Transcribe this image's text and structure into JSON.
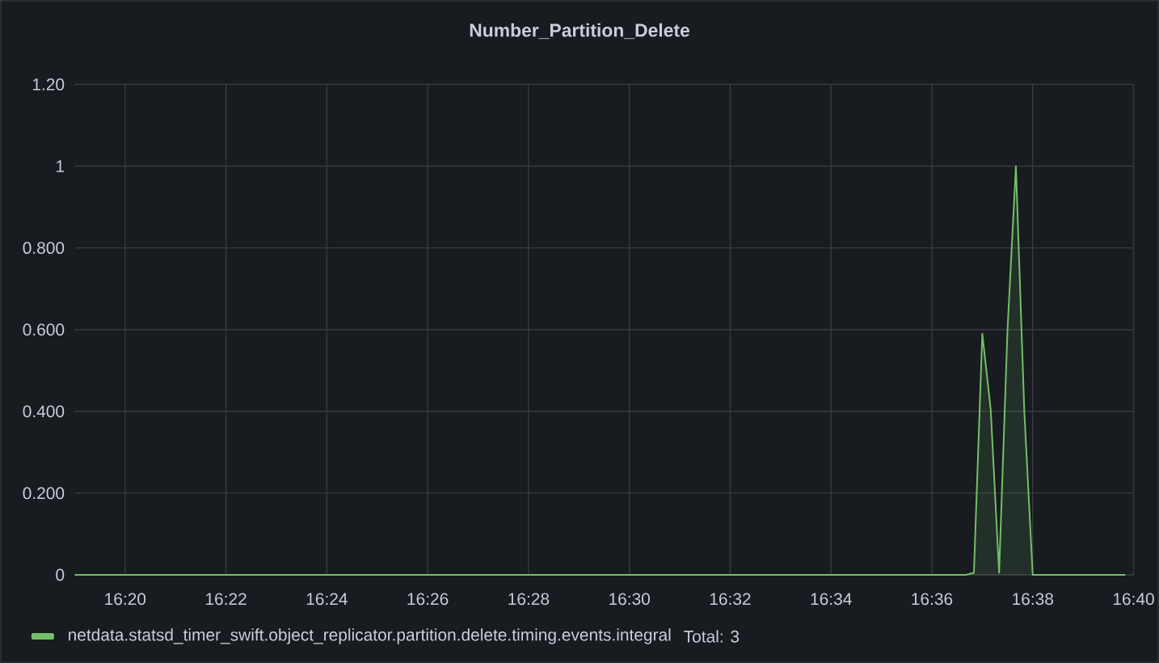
{
  "chart_data": {
    "type": "area",
    "title": "Number_Partition_Delete",
    "x": [
      16.316667,
      16.611111,
      16.613889,
      16.616667,
      16.619444,
      16.622222,
      16.625,
      16.627778,
      16.630556,
      16.633333,
      16.663889
    ],
    "series": [
      {
        "name": "netdata.statsd_timer_swift.object_replicator.partition.delete.timing.events.integral",
        "color": "#73bf69",
        "values": [
          0,
          0,
          0.005,
          0.59,
          0.405,
          0.005,
          0.6,
          1,
          0.4,
          0,
          0
        ]
      }
    ],
    "annotations": [
      "Total: 3"
    ],
    "xlim": [
      16.316667,
      16.666667
    ],
    "xticks": [
      {
        "value": 16.333333,
        "label": "16:20"
      },
      {
        "value": 16.366667,
        "label": "16:22"
      },
      {
        "value": 16.4,
        "label": "16:24"
      },
      {
        "value": 16.433333,
        "label": "16:26"
      },
      {
        "value": 16.466667,
        "label": "16:28"
      },
      {
        "value": 16.5,
        "label": "16:30"
      },
      {
        "value": 16.533333,
        "label": "16:32"
      },
      {
        "value": 16.566667,
        "label": "16:34"
      },
      {
        "value": 16.6,
        "label": "16:36"
      },
      {
        "value": 16.633333,
        "label": "16:38"
      },
      {
        "value": 16.666667,
        "label": "16:40"
      }
    ],
    "ylim": [
      0,
      1.2
    ],
    "yticks": [
      0,
      {
        "value": 0.2,
        "label": "0.200"
      },
      {
        "value": 0.4,
        "label": "0.400"
      },
      {
        "value": 0.6,
        "label": "0.600"
      },
      {
        "value": 0.8,
        "label": "0.800"
      },
      1,
      {
        "value": 1.2,
        "label": "1.20"
      }
    ],
    "grid": true,
    "legend": "bottom"
  }
}
